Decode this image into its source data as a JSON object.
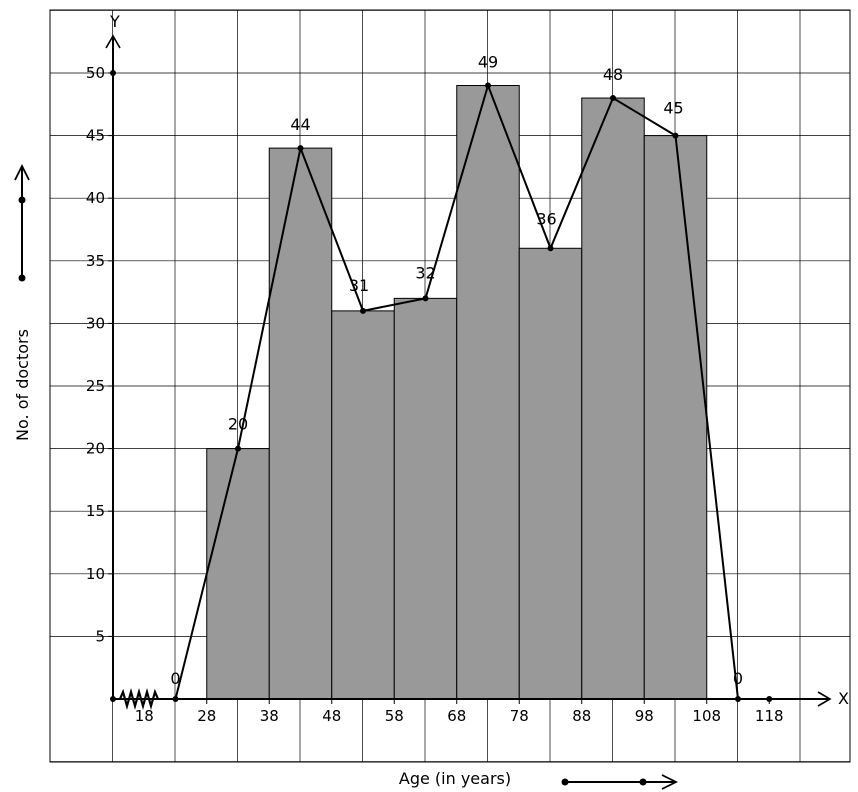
{
  "chart_data": {
    "type": "bar",
    "title": "",
    "xlabel": "Age (in years)",
    "ylabel": "No. of doctors",
    "x_axis_letter": "X",
    "y_axis_letter": "Y",
    "bins": [
      {
        "start": 28,
        "end": 38,
        "value": 20
      },
      {
        "start": 38,
        "end": 48,
        "value": 44
      },
      {
        "start": 48,
        "end": 58,
        "value": 31
      },
      {
        "start": 58,
        "end": 68,
        "value": 32
      },
      {
        "start": 68,
        "end": 78,
        "value": 49
      },
      {
        "start": 78,
        "end": 88,
        "value": 36
      },
      {
        "start": 88,
        "end": 98,
        "value": 48
      },
      {
        "start": 98,
        "end": 108,
        "value": 45
      }
    ],
    "frequency_polygon": {
      "x": [
        23,
        33,
        43,
        53,
        63,
        73,
        83,
        93,
        103,
        113
      ],
      "y": [
        0,
        20,
        44,
        31,
        32,
        49,
        36,
        48,
        45,
        0
      ],
      "labels": [
        "0",
        "20",
        "44",
        "31",
        "32",
        "49",
        "36",
        "48",
        "45",
        "0"
      ]
    },
    "x_ticks": [
      "18",
      "28",
      "38",
      "48",
      "58",
      "68",
      "78",
      "88",
      "98",
      "108",
      "118"
    ],
    "x_tick_values": [
      18,
      28,
      38,
      48,
      58,
      68,
      78,
      88,
      98,
      108,
      118
    ],
    "y_ticks": [
      "5",
      "10",
      "15",
      "20",
      "25",
      "30",
      "35",
      "40",
      "45",
      "50"
    ],
    "y_tick_values": [
      5,
      10,
      15,
      20,
      25,
      30,
      35,
      40,
      45,
      50
    ],
    "xlim": [
      8,
      128
    ],
    "ylim": [
      -5,
      55
    ],
    "grid": true,
    "axis_break": "kink on x-axis near origin",
    "colors": {
      "bar_fill": "#999999",
      "bar_edge": "#000000",
      "grid": "#000000",
      "polygon": "#000000",
      "background": "#ffffff"
    }
  }
}
